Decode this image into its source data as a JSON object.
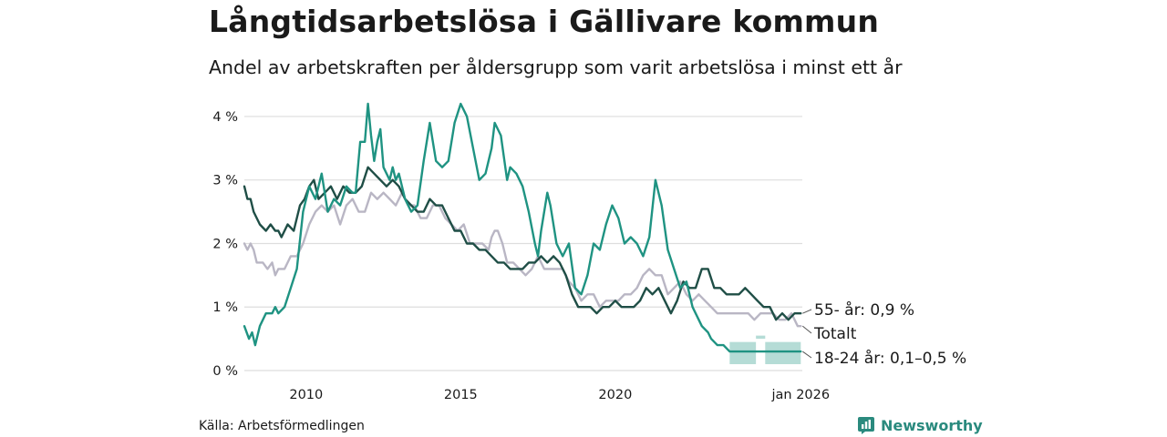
{
  "title": "Långtidsarbetslösa i Gällivare kommun",
  "subtitle": "Andel av arbetskraften per åldersgrupp som varit arbetslösa i minst ett år",
  "source": "Källa: Arbetsförmedlingen",
  "brand": "Newsworthy",
  "colors": {
    "age55": "#1f4e46",
    "total": "#b9b6c4",
    "age18": "#1f9382",
    "band": "#a8d6cf",
    "grid": "#dddddd"
  },
  "chart_data": {
    "type": "line",
    "title": "Långtidsarbetslösa i Gällivare kommun",
    "subtitle": "Andel av arbetskraften per åldersgrupp som varit arbetslösa i minst ett år",
    "xlabel": "",
    "ylabel": "",
    "xlim": [
      2008.0,
      2026.05
    ],
    "ylim": [
      0,
      4.3
    ],
    "grid": true,
    "yticks": [
      0,
      1,
      2,
      3,
      4
    ],
    "ytick_labels": [
      "0 %",
      "1 %",
      "2 %",
      "3 %",
      "4 %"
    ],
    "xticks": [
      2010,
      2015,
      2020,
      2026
    ],
    "xtick_labels": [
      "2010",
      "2015",
      "2020",
      "jan 2026"
    ],
    "series": [
      {
        "name": "Totalt",
        "label": "Totalt",
        "color": "#b9b6c4",
        "points": [
          [
            2008.0,
            2.0
          ],
          [
            2008.1,
            1.9
          ],
          [
            2008.2,
            2.0
          ],
          [
            2008.3,
            1.9
          ],
          [
            2008.4,
            1.7
          ],
          [
            2008.6,
            1.7
          ],
          [
            2008.75,
            1.6
          ],
          [
            2008.9,
            1.7
          ],
          [
            2009.0,
            1.5
          ],
          [
            2009.1,
            1.6
          ],
          [
            2009.3,
            1.6
          ],
          [
            2009.5,
            1.8
          ],
          [
            2009.7,
            1.8
          ],
          [
            2009.9,
            2.0
          ],
          [
            2010.1,
            2.3
          ],
          [
            2010.3,
            2.5
          ],
          [
            2010.5,
            2.6
          ],
          [
            2010.7,
            2.5
          ],
          [
            2010.9,
            2.6
          ],
          [
            2011.1,
            2.3
          ],
          [
            2011.3,
            2.6
          ],
          [
            2011.5,
            2.7
          ],
          [
            2011.7,
            2.5
          ],
          [
            2011.9,
            2.5
          ],
          [
            2012.1,
            2.8
          ],
          [
            2012.3,
            2.7
          ],
          [
            2012.5,
            2.8
          ],
          [
            2012.7,
            2.7
          ],
          [
            2012.9,
            2.6
          ],
          [
            2013.1,
            2.8
          ],
          [
            2013.3,
            2.6
          ],
          [
            2013.5,
            2.6
          ],
          [
            2013.7,
            2.4
          ],
          [
            2013.9,
            2.4
          ],
          [
            2014.1,
            2.6
          ],
          [
            2014.3,
            2.6
          ],
          [
            2014.5,
            2.4
          ],
          [
            2014.7,
            2.3
          ],
          [
            2014.9,
            2.2
          ],
          [
            2015.1,
            2.3
          ],
          [
            2015.3,
            2.0
          ],
          [
            2015.5,
            2.0
          ],
          [
            2015.7,
            2.0
          ],
          [
            2015.9,
            1.9
          ],
          [
            2016.0,
            2.1
          ],
          [
            2016.1,
            2.2
          ],
          [
            2016.2,
            2.2
          ],
          [
            2016.35,
            2.0
          ],
          [
            2016.5,
            1.7
          ],
          [
            2016.7,
            1.7
          ],
          [
            2016.9,
            1.6
          ],
          [
            2017.1,
            1.5
          ],
          [
            2017.3,
            1.6
          ],
          [
            2017.5,
            1.8
          ],
          [
            2017.7,
            1.6
          ],
          [
            2017.9,
            1.6
          ],
          [
            2018.1,
            1.6
          ],
          [
            2018.3,
            1.6
          ],
          [
            2018.5,
            1.4
          ],
          [
            2018.7,
            1.3
          ],
          [
            2018.9,
            1.1
          ],
          [
            2019.1,
            1.2
          ],
          [
            2019.3,
            1.2
          ],
          [
            2019.5,
            1.0
          ],
          [
            2019.7,
            1.1
          ],
          [
            2019.9,
            1.1
          ],
          [
            2020.1,
            1.1
          ],
          [
            2020.3,
            1.2
          ],
          [
            2020.5,
            1.2
          ],
          [
            2020.7,
            1.3
          ],
          [
            2020.9,
            1.5
          ],
          [
            2021.1,
            1.6
          ],
          [
            2021.3,
            1.5
          ],
          [
            2021.5,
            1.5
          ],
          [
            2021.7,
            1.2
          ],
          [
            2021.9,
            1.3
          ],
          [
            2022.1,
            1.4
          ],
          [
            2022.3,
            1.2
          ],
          [
            2022.5,
            1.1
          ],
          [
            2022.7,
            1.2
          ],
          [
            2022.9,
            1.1
          ],
          [
            2023.1,
            1.0
          ],
          [
            2023.3,
            0.9
          ],
          [
            2023.5,
            0.9
          ],
          [
            2023.7,
            0.9
          ],
          [
            2023.9,
            0.9
          ],
          [
            2024.1,
            0.9
          ],
          [
            2024.3,
            0.9
          ],
          [
            2024.5,
            0.8
          ],
          [
            2024.7,
            0.9
          ],
          [
            2024.9,
            0.9
          ],
          [
            2025.1,
            0.9
          ],
          [
            2025.3,
            0.8
          ],
          [
            2025.5,
            0.8
          ],
          [
            2025.7,
            0.9
          ],
          [
            2025.9,
            0.7
          ],
          [
            2026.0,
            0.7
          ]
        ]
      },
      {
        "name": "55- år",
        "label": "55- år: 0,9 %",
        "color": "#1f4e46",
        "points": [
          [
            2008.0,
            2.9
          ],
          [
            2008.1,
            2.7
          ],
          [
            2008.2,
            2.7
          ],
          [
            2008.3,
            2.5
          ],
          [
            2008.5,
            2.3
          ],
          [
            2008.7,
            2.2
          ],
          [
            2008.85,
            2.3
          ],
          [
            2009.0,
            2.2
          ],
          [
            2009.1,
            2.2
          ],
          [
            2009.2,
            2.1
          ],
          [
            2009.4,
            2.3
          ],
          [
            2009.6,
            2.2
          ],
          [
            2009.8,
            2.6
          ],
          [
            2009.95,
            2.7
          ],
          [
            2010.1,
            2.9
          ],
          [
            2010.25,
            3.0
          ],
          [
            2010.4,
            2.7
          ],
          [
            2010.6,
            2.8
          ],
          [
            2010.8,
            2.9
          ],
          [
            2011.0,
            2.7
          ],
          [
            2011.2,
            2.9
          ],
          [
            2011.4,
            2.8
          ],
          [
            2011.6,
            2.8
          ],
          [
            2011.8,
            2.9
          ],
          [
            2012.0,
            3.2
          ],
          [
            2012.2,
            3.1
          ],
          [
            2012.4,
            3.0
          ],
          [
            2012.6,
            2.9
          ],
          [
            2012.8,
            3.0
          ],
          [
            2013.0,
            2.9
          ],
          [
            2013.2,
            2.7
          ],
          [
            2013.4,
            2.6
          ],
          [
            2013.6,
            2.5
          ],
          [
            2013.8,
            2.5
          ],
          [
            2014.0,
            2.7
          ],
          [
            2014.2,
            2.6
          ],
          [
            2014.4,
            2.6
          ],
          [
            2014.6,
            2.4
          ],
          [
            2014.8,
            2.2
          ],
          [
            2015.0,
            2.2
          ],
          [
            2015.2,
            2.0
          ],
          [
            2015.4,
            2.0
          ],
          [
            2015.6,
            1.9
          ],
          [
            2015.8,
            1.9
          ],
          [
            2016.0,
            1.8
          ],
          [
            2016.2,
            1.7
          ],
          [
            2016.4,
            1.7
          ],
          [
            2016.6,
            1.6
          ],
          [
            2016.8,
            1.6
          ],
          [
            2017.0,
            1.6
          ],
          [
            2017.2,
            1.7
          ],
          [
            2017.4,
            1.7
          ],
          [
            2017.6,
            1.8
          ],
          [
            2017.8,
            1.7
          ],
          [
            2018.0,
            1.8
          ],
          [
            2018.2,
            1.7
          ],
          [
            2018.4,
            1.5
          ],
          [
            2018.6,
            1.2
          ],
          [
            2018.8,
            1.0
          ],
          [
            2019.0,
            1.0
          ],
          [
            2019.2,
            1.0
          ],
          [
            2019.4,
            0.9
          ],
          [
            2019.6,
            1.0
          ],
          [
            2019.8,
            1.0
          ],
          [
            2020.0,
            1.1
          ],
          [
            2020.2,
            1.0
          ],
          [
            2020.4,
            1.0
          ],
          [
            2020.6,
            1.0
          ],
          [
            2020.8,
            1.1
          ],
          [
            2021.0,
            1.3
          ],
          [
            2021.2,
            1.2
          ],
          [
            2021.4,
            1.3
          ],
          [
            2021.6,
            1.1
          ],
          [
            2021.8,
            0.9
          ],
          [
            2022.0,
            1.1
          ],
          [
            2022.2,
            1.4
          ],
          [
            2022.4,
            1.3
          ],
          [
            2022.6,
            1.3
          ],
          [
            2022.8,
            1.6
          ],
          [
            2023.0,
            1.6
          ],
          [
            2023.2,
            1.3
          ],
          [
            2023.4,
            1.3
          ],
          [
            2023.6,
            1.2
          ],
          [
            2023.8,
            1.2
          ],
          [
            2024.0,
            1.2
          ],
          [
            2024.2,
            1.3
          ],
          [
            2024.4,
            1.2
          ],
          [
            2024.6,
            1.1
          ],
          [
            2024.8,
            1.0
          ],
          [
            2025.0,
            1.0
          ],
          [
            2025.2,
            0.8
          ],
          [
            2025.4,
            0.9
          ],
          [
            2025.6,
            0.8
          ],
          [
            2025.8,
            0.9
          ],
          [
            2026.0,
            0.9
          ]
        ]
      },
      {
        "name": "18-24 år",
        "label": "18-24 år: 0,1–0,5 %",
        "color": "#1f9382",
        "points": [
          [
            2008.0,
            0.7
          ],
          [
            2008.15,
            0.5
          ],
          [
            2008.25,
            0.6
          ],
          [
            2008.35,
            0.4
          ],
          [
            2008.5,
            0.7
          ],
          [
            2008.7,
            0.9
          ],
          [
            2008.9,
            0.9
          ],
          [
            2009.0,
            1.0
          ],
          [
            2009.1,
            0.9
          ],
          [
            2009.3,
            1.0
          ],
          [
            2009.5,
            1.3
          ],
          [
            2009.7,
            1.6
          ],
          [
            2009.9,
            2.5
          ],
          [
            2010.1,
            2.9
          ],
          [
            2010.3,
            2.7
          ],
          [
            2010.5,
            3.1
          ],
          [
            2010.7,
            2.5
          ],
          [
            2010.9,
            2.7
          ],
          [
            2011.1,
            2.6
          ],
          [
            2011.3,
            2.9
          ],
          [
            2011.5,
            2.8
          ],
          [
            2011.6,
            2.8
          ],
          [
            2011.75,
            3.6
          ],
          [
            2011.9,
            3.6
          ],
          [
            2012.0,
            4.2
          ],
          [
            2012.1,
            3.7
          ],
          [
            2012.2,
            3.3
          ],
          [
            2012.3,
            3.6
          ],
          [
            2012.4,
            3.8
          ],
          [
            2012.5,
            3.2
          ],
          [
            2012.7,
            3.0
          ],
          [
            2012.8,
            3.2
          ],
          [
            2012.9,
            3.0
          ],
          [
            2013.0,
            3.1
          ],
          [
            2013.2,
            2.7
          ],
          [
            2013.4,
            2.5
          ],
          [
            2013.6,
            2.6
          ],
          [
            2013.8,
            3.3
          ],
          [
            2014.0,
            3.9
          ],
          [
            2014.2,
            3.3
          ],
          [
            2014.4,
            3.2
          ],
          [
            2014.6,
            3.3
          ],
          [
            2014.8,
            3.9
          ],
          [
            2015.0,
            4.2
          ],
          [
            2015.2,
            4.0
          ],
          [
            2015.4,
            3.5
          ],
          [
            2015.6,
            3.0
          ],
          [
            2015.8,
            3.1
          ],
          [
            2016.0,
            3.5
          ],
          [
            2016.1,
            3.9
          ],
          [
            2016.3,
            3.7
          ],
          [
            2016.5,
            3.0
          ],
          [
            2016.6,
            3.2
          ],
          [
            2016.8,
            3.1
          ],
          [
            2017.0,
            2.9
          ],
          [
            2017.2,
            2.5
          ],
          [
            2017.4,
            2.0
          ],
          [
            2017.5,
            1.8
          ],
          [
            2017.6,
            2.2
          ],
          [
            2017.8,
            2.8
          ],
          [
            2017.9,
            2.6
          ],
          [
            2018.1,
            2.0
          ],
          [
            2018.3,
            1.8
          ],
          [
            2018.5,
            2.0
          ],
          [
            2018.7,
            1.3
          ],
          [
            2018.9,
            1.2
          ],
          [
            2019.1,
            1.5
          ],
          [
            2019.3,
            2.0
          ],
          [
            2019.5,
            1.9
          ],
          [
            2019.7,
            2.3
          ],
          [
            2019.9,
            2.6
          ],
          [
            2020.1,
            2.4
          ],
          [
            2020.3,
            2.0
          ],
          [
            2020.5,
            2.1
          ],
          [
            2020.7,
            2.0
          ],
          [
            2020.9,
            1.8
          ],
          [
            2021.1,
            2.1
          ],
          [
            2021.3,
            3.0
          ],
          [
            2021.5,
            2.6
          ],
          [
            2021.7,
            1.9
          ],
          [
            2021.9,
            1.6
          ],
          [
            2022.1,
            1.3
          ],
          [
            2022.3,
            1.4
          ],
          [
            2022.5,
            1.0
          ],
          [
            2022.7,
            0.8
          ],
          [
            2022.8,
            0.7
          ],
          [
            2023.0,
            0.6
          ],
          [
            2023.1,
            0.5
          ],
          [
            2023.3,
            0.4
          ],
          [
            2023.5,
            0.4
          ],
          [
            2023.7,
            0.3
          ],
          [
            2025.0,
            0.3
          ],
          [
            2026.0,
            0.3
          ]
        ]
      }
    ],
    "band": {
      "name": "18-24 år osäkerhetsintervall",
      "color": "#a8d6cf",
      "segments": [
        {
          "x": [
            2023.7,
            2024.55
          ],
          "low": 0.1,
          "high": 0.45
        },
        {
          "x": [
            2024.55,
            2024.85
          ],
          "low": 0.5,
          "high": 0.55
        },
        {
          "x": [
            2024.85,
            2026.0
          ],
          "low": 0.1,
          "high": 0.45
        }
      ]
    }
  }
}
